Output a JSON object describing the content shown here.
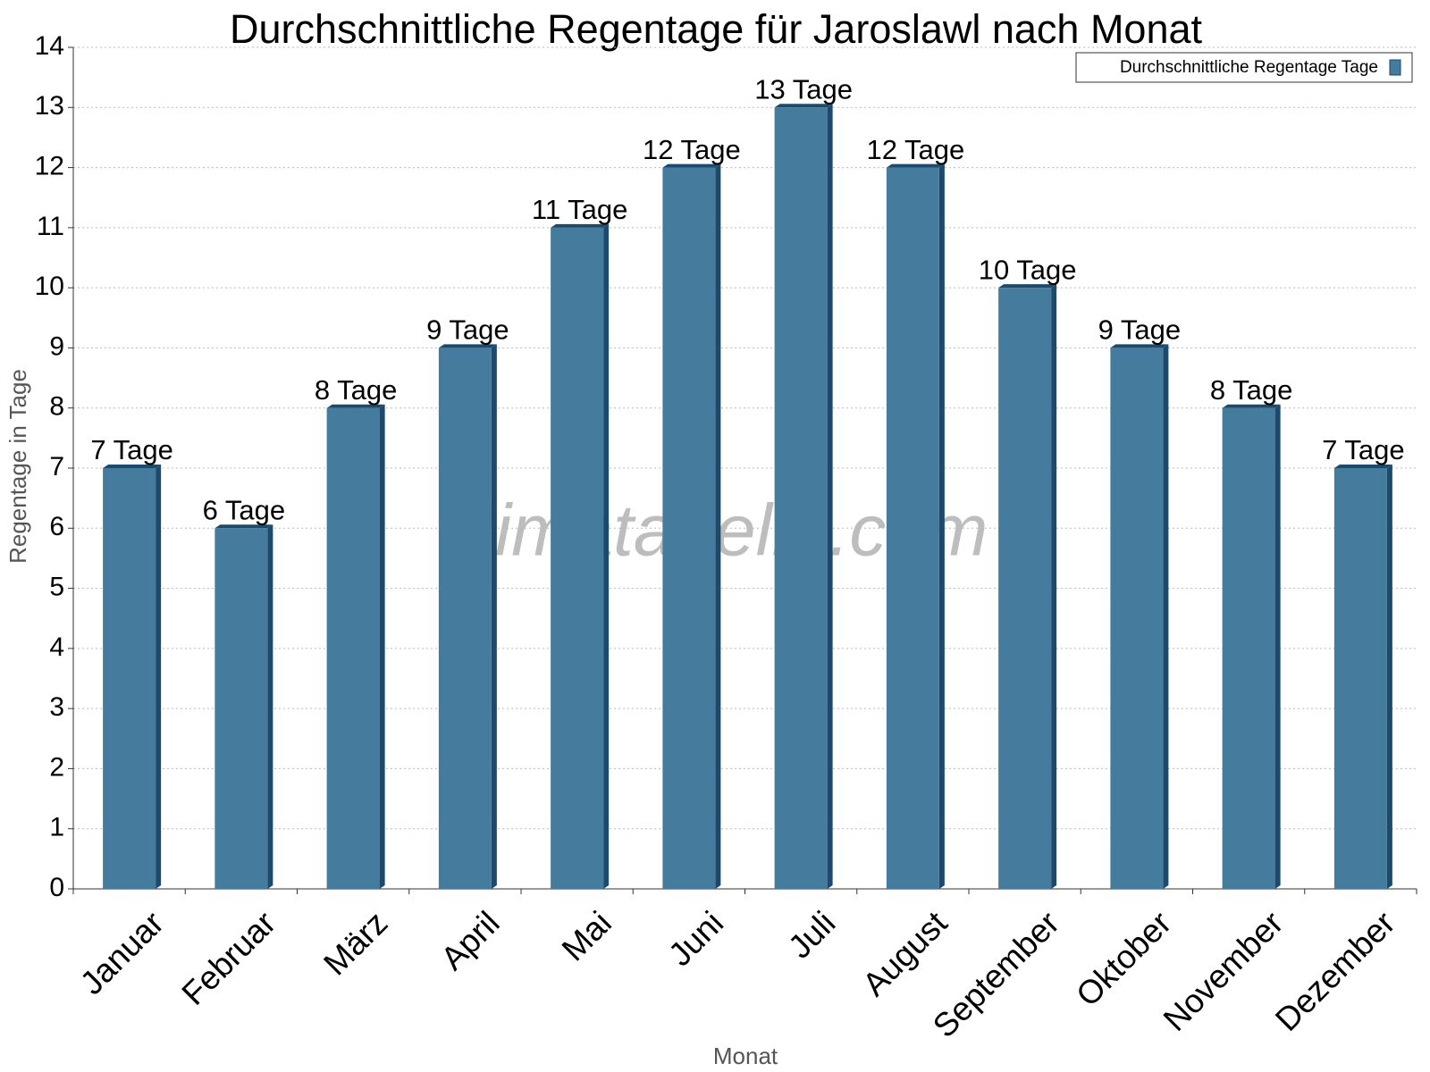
{
  "chart_data": {
    "type": "bar",
    "title": "Durchschnittliche Regentage für Jaroslawl nach Monat",
    "watermark": "klimatabelle.com",
    "x_label": "Monat",
    "y_label": "Regentage in Tage",
    "categories": [
      "Januar",
      "Februar",
      "März",
      "April",
      "Mai",
      "Juni",
      "Juli",
      "August",
      "September",
      "Oktober",
      "November",
      "Dezember"
    ],
    "series": [
      {
        "name": "Durchschnittliche Regentage Tage",
        "color": "#457b9d",
        "values": [
          7,
          6,
          8,
          9,
          11,
          12,
          13,
          12,
          10,
          9,
          8,
          7
        ],
        "value_labels": [
          "7 Tage",
          "6 Tage",
          "8 Tage",
          "9 Tage",
          "11 Tage",
          "12 Tage",
          "13 Tage",
          "12 Tage",
          "10 Tage",
          "9 Tage",
          "8 Tage",
          "7 Tage"
        ]
      }
    ],
    "ylim": [
      0,
      14
    ],
    "yticks": [
      0,
      1,
      2,
      3,
      4,
      5,
      6,
      7,
      8,
      9,
      10,
      11,
      12,
      13,
      14
    ],
    "grid": true,
    "legend": "top-right"
  }
}
